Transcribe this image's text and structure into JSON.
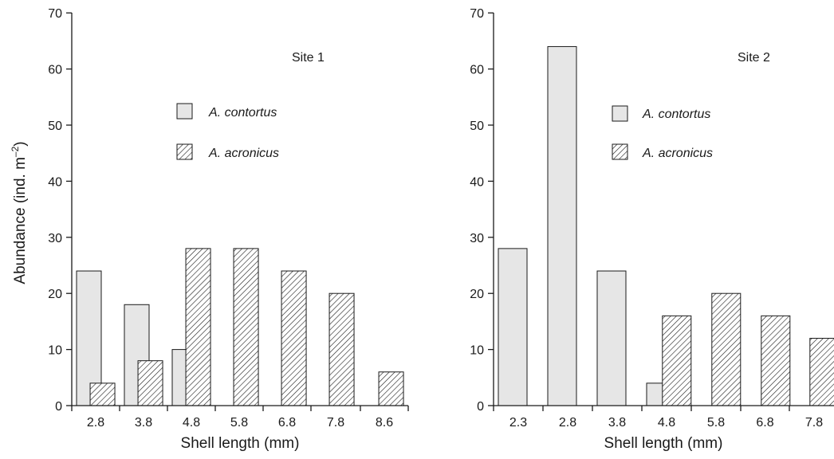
{
  "chart_data": [
    {
      "type": "bar",
      "title": "Site 1",
      "xlabel": "Shell length (mm)",
      "ylabel": "Abundance (ind. m",
      "ylabel_sup": "–2",
      "ylabel_end": ")",
      "ylim": [
        0,
        70
      ],
      "yticks": [
        "0",
        "10",
        "20",
        "30",
        "40",
        "50",
        "60",
        "70"
      ],
      "categories": [
        "2.8",
        "3.8",
        "4.8",
        "5.8",
        "6.8",
        "7.8",
        "8.6"
      ],
      "series": [
        {
          "name": "A. contortus",
          "fill": "#e6e6e6",
          "pattern": "solid",
          "values": [
            24,
            18,
            10,
            0,
            0,
            0,
            0
          ]
        },
        {
          "name": "A. acronicus",
          "fill": "#ffffff",
          "pattern": "hatch",
          "values": [
            4,
            8,
            28,
            28,
            24,
            20,
            6
          ]
        }
      ],
      "legend": "upper-center",
      "grid": false
    },
    {
      "type": "bar",
      "title": "Site 2",
      "xlabel": "Shell length (mm)",
      "ylim": [
        0,
        70
      ],
      "yticks": [
        "0",
        "10",
        "20",
        "30",
        "40",
        "50",
        "60",
        "70"
      ],
      "categories": [
        "2.3",
        "2.8",
        "3.8",
        "4.8",
        "5.8",
        "6.8",
        "7.8"
      ],
      "series": [
        {
          "name": "A. contortus",
          "fill": "#e6e6e6",
          "pattern": "solid",
          "values": [
            28,
            64,
            24,
            4,
            0,
            0,
            0
          ]
        },
        {
          "name": "A. acronicus",
          "fill": "#ffffff",
          "pattern": "hatch",
          "values": [
            0,
            0,
            0,
            16,
            20,
            16,
            12
          ]
        }
      ],
      "legend": "upper-center",
      "grid": false
    }
  ]
}
